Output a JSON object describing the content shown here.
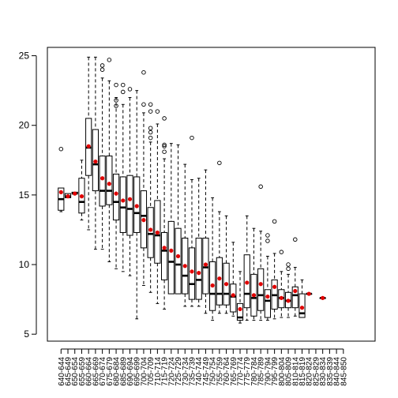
{
  "chart_data": {
    "type": "boxplot",
    "title": "",
    "xlabel": "",
    "ylabel": "",
    "ylim": [
      4.5,
      25.6
    ],
    "yticks": [
      5,
      10,
      15,
      20,
      25
    ],
    "grid": false,
    "legend": "none",
    "colors": {
      "box": "#000000",
      "mean_point": "#e00000",
      "outlier": "#000000"
    },
    "categories": [
      "640-644",
      "645-649",
      "650-654",
      "655-659",
      "660-664",
      "665-669",
      "670-674",
      "675-679",
      "680-684",
      "685-689",
      "690-694",
      "695-699",
      "700-704",
      "705-709",
      "710-714",
      "715-719",
      "720-724",
      "725-729",
      "730-734",
      "735-739",
      "740-744",
      "745-749",
      "750-754",
      "755-759",
      "760-764",
      "765-769",
      "770-774",
      "775-779",
      "780-784",
      "785-789",
      "790-794",
      "795-799",
      "800-804",
      "805-809",
      "810-814",
      "815-819",
      "820-824",
      "825-829",
      "830-834",
      "835-839",
      "840-844",
      "845-850"
    ],
    "boxes": [
      {
        "wmin": 13.8,
        "q1": 13.9,
        "median": 14.7,
        "q3": 15.5,
        "wmax": 15.5,
        "mean": 15.2,
        "outliers": [
          18.3
        ]
      },
      {
        "wmin": 14.8,
        "q1": 14.8,
        "median": 14.9,
        "q3": 15.1,
        "wmax": 15.1,
        "mean": 14.9,
        "outliers": []
      },
      {
        "wmin": 15.1,
        "q1": 15.1,
        "median": 15.1,
        "q3": 15.2,
        "wmax": 15.2,
        "mean": 15.1,
        "outliers": []
      },
      {
        "wmin": 13.2,
        "q1": 13.7,
        "median": 14.5,
        "q3": 16.2,
        "wmax": 17.5,
        "mean": 14.9,
        "outliers": []
      },
      {
        "wmin": 12.5,
        "q1": 16.4,
        "median": 18.4,
        "q3": 20.5,
        "wmax": 24.9,
        "mean": 18.5,
        "outliers": []
      },
      {
        "wmin": 11.1,
        "q1": 15.3,
        "median": 17.2,
        "q3": 19.7,
        "wmax": 24.9,
        "mean": 17.4,
        "outliers": []
      },
      {
        "wmin": 11.1,
        "q1": 14.2,
        "median": 15.3,
        "q3": 17.8,
        "wmax": 23.4,
        "mean": 16.2,
        "outliers": [
          24.3,
          24.0
        ]
      },
      {
        "wmin": 10.2,
        "q1": 14.3,
        "median": 15.3,
        "q3": 17.8,
        "wmax": 23.2,
        "mean": 15.8,
        "outliers": [
          24.7
        ]
      },
      {
        "wmin": 9.7,
        "q1": 13.2,
        "median": 14.5,
        "q3": 16.5,
        "wmax": 22.0,
        "mean": 15.1,
        "outliers": [
          22.9,
          21.8,
          21.4
        ]
      },
      {
        "wmin": 9.5,
        "q1": 12.3,
        "median": 14.1,
        "q3": 16.3,
        "wmax": 21.5,
        "mean": 14.6,
        "outliers": [
          22.9,
          22.4
        ]
      },
      {
        "wmin": 9.2,
        "q1": 12.1,
        "median": 14.0,
        "q3": 16.4,
        "wmax": 22.0,
        "mean": 14.7,
        "outliers": [
          22.6
        ]
      },
      {
        "wmin": 6.1,
        "q1": 12.3,
        "median": 13.7,
        "q3": 16.3,
        "wmax": 22.5,
        "mean": 14.2,
        "outliers": []
      },
      {
        "wmin": 8.5,
        "q1": 11.2,
        "median": 13.5,
        "q3": 15.3,
        "wmax": 20.9,
        "mean": 13.2,
        "outliers": [
          23.8,
          21.5
        ]
      },
      {
        "wmin": 8.0,
        "q1": 10.5,
        "median": 12.2,
        "q3": 14.1,
        "wmax": 18.8,
        "mean": 12.5,
        "outliers": [
          21.5,
          21.0,
          19.8,
          19.5,
          19.1
        ]
      },
      {
        "wmin": 7.2,
        "q1": 10.1,
        "median": 12.1,
        "q3": 14.6,
        "wmax": 20.1,
        "mean": 12.3,
        "outliers": [
          21.0
        ]
      },
      {
        "wmin": 6.8,
        "q1": 8.9,
        "median": 11.0,
        "q3": 12.3,
        "wmax": 17.6,
        "mean": 11.2,
        "outliers": [
          20.5,
          18.6,
          18.5,
          18.1
        ]
      },
      {
        "wmin": 7.9,
        "q1": 7.9,
        "median": 10.2,
        "q3": 13.1,
        "wmax": 18.7,
        "mean": 11.0,
        "outliers": []
      },
      {
        "wmin": 7.9,
        "q1": 7.9,
        "median": 10.0,
        "q3": 12.6,
        "wmax": 18.6,
        "mean": 10.6,
        "outliers": []
      },
      {
        "wmin": 7.0,
        "q1": 7.9,
        "median": 9.2,
        "q3": 11.9,
        "wmax": 17.2,
        "mean": 9.9,
        "outliers": []
      },
      {
        "wmin": 7.0,
        "q1": 7.5,
        "median": 8.6,
        "q3": 11.2,
        "wmax": 16.1,
        "mean": 9.5,
        "outliers": [
          19.1
        ]
      },
      {
        "wmin": 7.0,
        "q1": 7.5,
        "median": 8.9,
        "q3": 11.9,
        "wmax": 16.2,
        "mean": 9.4,
        "outliers": []
      },
      {
        "wmin": 6.5,
        "q1": 7.9,
        "median": 9.8,
        "q3": 11.9,
        "wmax": 16.8,
        "mean": 10.0,
        "outliers": []
      },
      {
        "wmin": 6.0,
        "q1": 6.7,
        "median": 7.9,
        "q3": 10.2,
        "wmax": 14.8,
        "mean": 8.5,
        "outliers": []
      },
      {
        "wmin": 6.5,
        "q1": 7.1,
        "median": 7.9,
        "q3": 10.5,
        "wmax": 13.8,
        "mean": 9.0,
        "outliers": [
          17.3
        ]
      },
      {
        "wmin": 6.5,
        "q1": 7.1,
        "median": 7.9,
        "q3": 10.1,
        "wmax": 13.5,
        "mean": 8.6,
        "outliers": []
      },
      {
        "wmin": 6.3,
        "q1": 6.6,
        "median": 7.7,
        "q3": 8.6,
        "wmax": 11.6,
        "mean": 7.8,
        "outliers": []
      },
      {
        "wmin": 5.8,
        "q1": 6.0,
        "median": 6.2,
        "q3": 7.2,
        "wmax": 9.5,
        "mean": 6.8,
        "outliers": []
      },
      {
        "wmin": 6.0,
        "q1": 6.9,
        "median": 7.9,
        "q3": 10.7,
        "wmax": 13.5,
        "mean": 8.7,
        "outliers": []
      },
      {
        "wmin": 6.0,
        "q1": 6.3,
        "median": 7.6,
        "q3": 9.3,
        "wmax": 12.6,
        "mean": 7.8,
        "outliers": []
      },
      {
        "wmin": 6.0,
        "q1": 6.7,
        "median": 7.8,
        "q3": 9.7,
        "wmax": 12.4,
        "mean": 8.6,
        "outliers": [
          15.6
        ]
      },
      {
        "wmin": 6.0,
        "q1": 6.2,
        "median": 7.4,
        "q3": 8.2,
        "wmax": 10.6,
        "mean": 7.7,
        "outliers": [
          12.1,
          11.7
        ]
      },
      {
        "wmin": 6.1,
        "q1": 6.8,
        "median": 7.8,
        "q3": 8.9,
        "wmax": 10.8,
        "mean": 8.4,
        "outliers": [
          13.1
        ]
      },
      {
        "wmin": 6.2,
        "q1": 6.9,
        "median": 7.6,
        "q3": 8.2,
        "wmax": 9.5,
        "mean": 7.6,
        "outliers": [
          10.9
        ]
      },
      {
        "wmin": 6.2,
        "q1": 6.9,
        "median": 7.4,
        "q3": 8.0,
        "wmax": 9.3,
        "mean": 7.4,
        "outliers": [
          10.0,
          9.7
        ]
      },
      {
        "wmin": 6.3,
        "q1": 6.9,
        "median": 7.8,
        "q3": 8.4,
        "wmax": 9.8,
        "mean": 8.1,
        "outliers": [
          11.8
        ]
      },
      {
        "wmin": 6.3,
        "q1": 6.2,
        "median": 6.5,
        "q3": 7.9,
        "wmax": 8.9,
        "mean": 6.9,
        "outliers": []
      },
      {
        "wmin": 7.9,
        "q1": 7.9,
        "median": 7.9,
        "q3": 7.9,
        "wmax": 7.9,
        "mean": 7.9,
        "outliers": []
      },
      null,
      {
        "wmin": 7.6,
        "q1": 7.6,
        "median": 7.6,
        "q3": 7.6,
        "wmax": 7.6,
        "mean": 7.6,
        "outliers": []
      },
      null,
      null,
      null
    ]
  }
}
